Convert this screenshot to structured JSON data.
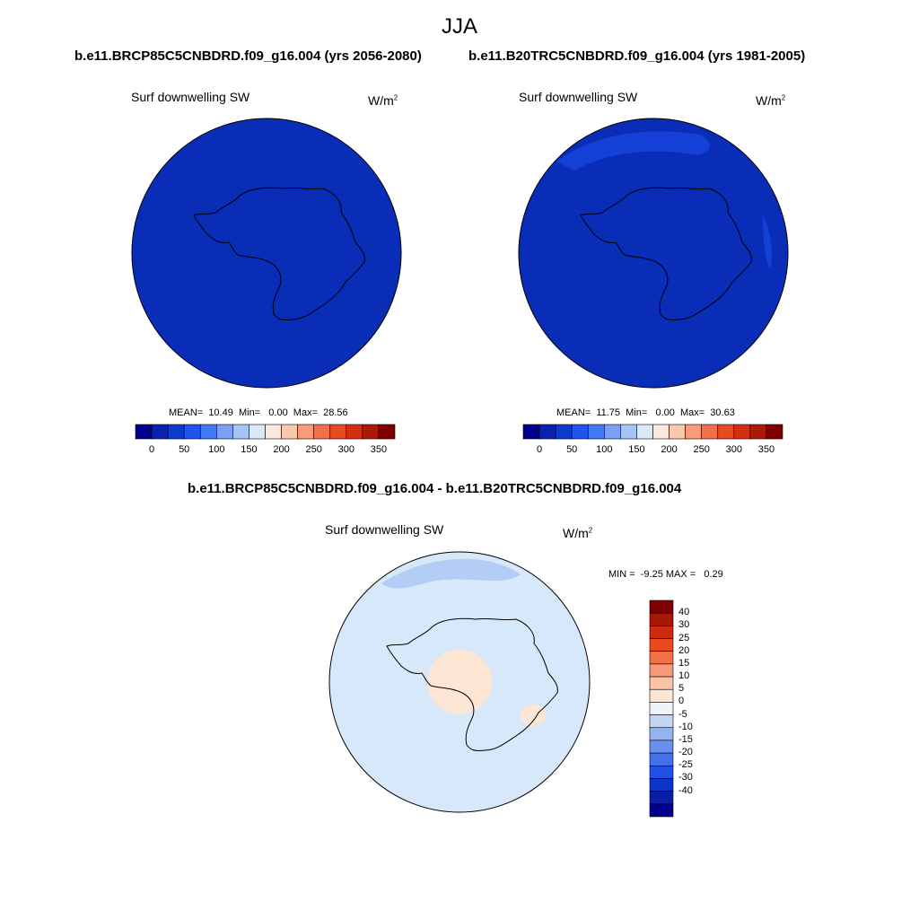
{
  "title": "JJA",
  "left_panel": {
    "case_title": "b.e11.BRCP85C5CNBDRD.f09_g16.004 (yrs 2056-2080)",
    "variable": "Surf downwelling SW",
    "units_base": "W/m",
    "units_exp": "2",
    "stats": "MEAN=  10.49  Min=   0.00  Max=  28.56",
    "fill_color": "#0a2db8"
  },
  "right_panel": {
    "case_title": "b.e11.B20TRC5CNBDRD.f09_g16.004 (yrs 1981-2005)",
    "variable": "Surf downwelling SW",
    "units_base": "W/m",
    "units_exp": "2",
    "stats": "MEAN=  11.75  Min=   0.00  Max=  30.63",
    "fill_color": "#0a2db8",
    "patch_color": "#1440d8"
  },
  "diff_panel": {
    "case_title": "b.e11.BRCP85C5CNBDRD.f09_g16.004 - b.e11.B20TRC5CNBDRD.f09_g16.004",
    "variable": "Surf downwelling SW",
    "units_base": "W/m",
    "units_exp": "2",
    "stats": "MIN =  -9.25 MAX =   0.29",
    "fill_color": "#d8e8fb",
    "neg_patch_color": "#b3cdf4",
    "pos_patch_color": "#fde6d4"
  },
  "horizontal_colorbar": {
    "colors": [
      "#00008c",
      "#0a20b0",
      "#0a3ad0",
      "#1f55ef",
      "#4479f5",
      "#7aa0f7",
      "#a9c3f7",
      "#dbe7fb",
      "#fde9da",
      "#fbc7ae",
      "#f79b7a",
      "#f2714d",
      "#ea4a22",
      "#d42d0f",
      "#aa1a06",
      "#800000"
    ],
    "labels": [
      "0",
      "50",
      "100",
      "150",
      "200",
      "250",
      "300",
      "350"
    ]
  },
  "vertical_colorbar": {
    "colors": [
      "#800000",
      "#a81806",
      "#d02a0c",
      "#ea4a1f",
      "#f47046",
      "#f89a78",
      "#fbc4a8",
      "#fde6d4",
      "#eef3fb",
      "#c3d6f5",
      "#94b3f2",
      "#6990ef",
      "#4470ec",
      "#2150e6",
      "#0c34c6",
      "#0a1fa4",
      "#00008c"
    ],
    "labels": [
      "40",
      "30",
      "25",
      "20",
      "15",
      "10",
      "5",
      "0",
      "-5",
      "-10",
      "-15",
      "-20",
      "-25",
      "-30",
      "-40"
    ]
  }
}
